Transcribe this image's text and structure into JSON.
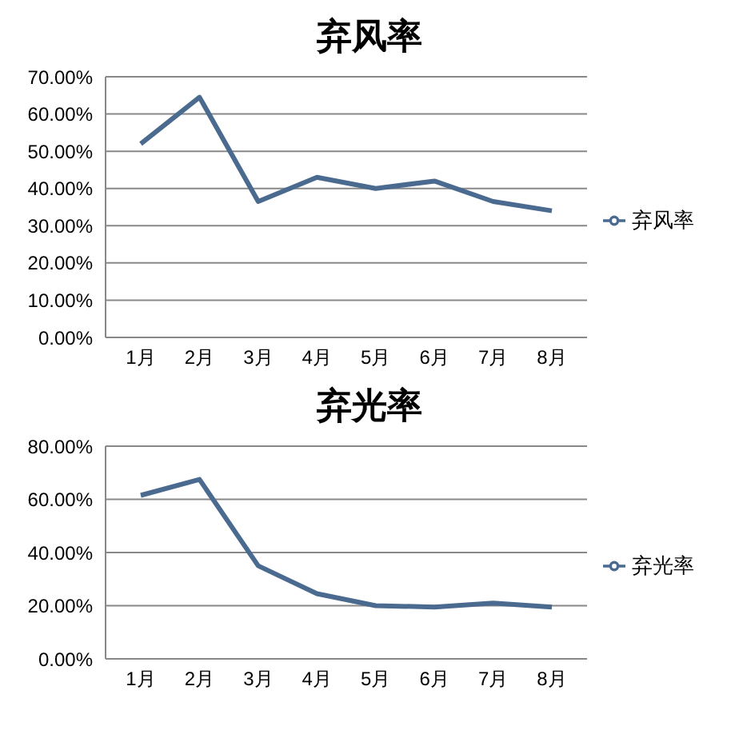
{
  "chart_data": [
    {
      "type": "line",
      "title": "弃风率",
      "categories": [
        "1月",
        "2月",
        "3月",
        "4月",
        "5月",
        "6月",
        "7月",
        "8月"
      ],
      "series": [
        {
          "name": "弃风率",
          "color": "#4a6b8f",
          "values": [
            52,
            64.5,
            36.5,
            43,
            40,
            42,
            36.5,
            34
          ]
        }
      ],
      "ylim": [
        0,
        70
      ],
      "yticks": [
        {
          "value": 0,
          "label": "0.00%"
        },
        {
          "value": 10,
          "label": "10.00%"
        },
        {
          "value": 20,
          "label": "20.00%"
        },
        {
          "value": 30,
          "label": "30.00%"
        },
        {
          "value": 40,
          "label": "40.00%"
        },
        {
          "value": 50,
          "label": "50.00%"
        },
        {
          "value": 60,
          "label": "60.00%"
        },
        {
          "value": 70,
          "label": "70.00%"
        }
      ],
      "grid": "y",
      "legend": "right",
      "marker": "none"
    },
    {
      "type": "line",
      "title": "弃光率",
      "categories": [
        "1月",
        "2月",
        "3月",
        "4月",
        "5月",
        "6月",
        "7月",
        "8月"
      ],
      "series": [
        {
          "name": "弃光率",
          "color": "#4a6b8f",
          "values": [
            61.5,
            67.5,
            35,
            24.5,
            20,
            19.5,
            21,
            19.5
          ]
        }
      ],
      "ylim": [
        0,
        80
      ],
      "yticks": [
        {
          "value": 0,
          "label": "0.00%"
        },
        {
          "value": 20,
          "label": "20.00%"
        },
        {
          "value": 40,
          "label": "40.00%"
        },
        {
          "value": 60,
          "label": "60.00%"
        },
        {
          "value": 80,
          "label": "80.00%"
        }
      ],
      "grid": "y",
      "legend": "right",
      "marker": "none"
    }
  ]
}
